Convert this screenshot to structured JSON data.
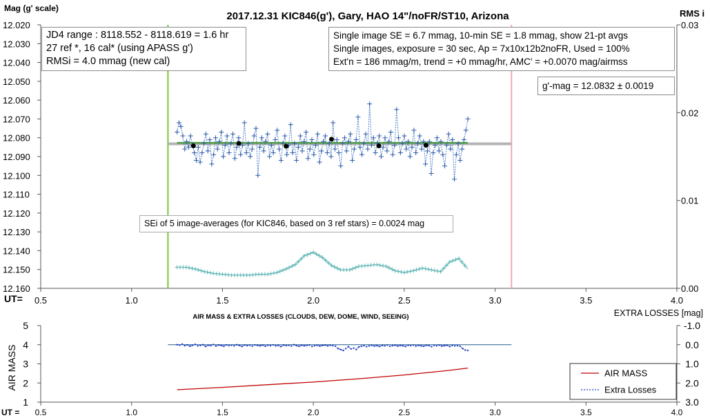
{
  "chart_data": [
    {
      "type": "line",
      "title": "2017.12.31  KIC846(g'),  Gary, HAO  14\"/noFR/ST10,  Arizona",
      "ylabel": "Mag (g' scale)",
      "y2label": "RMS i",
      "xlabel": "UT=",
      "xlim": [
        0.5,
        4.0
      ],
      "ylim": [
        12.02,
        12.16
      ],
      "y_inverted": true,
      "y2lim": [
        0.0,
        0.03
      ],
      "x_ticks": [
        "0.5",
        "1.0",
        "1.5",
        "2.0",
        "2.5",
        "3.0",
        "3.5",
        "4.0"
      ],
      "y_ticks": [
        "12.020",
        "12.030",
        "12.040",
        "12.050",
        "12.060",
        "12.070",
        "12.080",
        "12.090",
        "12.100",
        "12.110",
        "12.120",
        "12.130",
        "12.140",
        "12.150",
        "12.160"
      ],
      "y2_ticks": [
        "0.00",
        "0.01",
        "0.02",
        "0.03"
      ],
      "jd_start_x": 1.2,
      "jd_end_x": 3.09,
      "annotations": {
        "info_left": [
          "JD4 range : 8118.552 - 8118.619 = 1.6  hr",
          "27 ref *, 16 cal* (using APASS g')",
          "RMSi = 4.0 mmag (new cal)"
        ],
        "info_right": [
          "Single image SE = 6.7 mmag, 10-min SE = 1.8 mmag, show  21-pt avgs",
          "Single images, exposure = 30 sec, Ap = 7x10x12b2noFR,  Used = 100%",
          "Ext'n = 186 mmag/m, trend =  +0 mmag/hr, AMC' = +0.0070 mag/airmss"
        ],
        "gmag": "g'-mag = 12.0832 ± 0.0019",
        "sei": "SEi of 5 image-averages (for KIC846, based on 3 ref stars) = 0.0024  mag"
      },
      "series": [
        {
          "kind": "single images",
          "x_start": 1.25,
          "x_end": 2.85,
          "values": [
            12.077,
            12.072,
            12.074,
            12.079,
            12.086,
            12.082,
            12.085,
            12.079,
            12.084,
            12.088,
            12.092,
            12.085,
            12.093,
            12.088,
            12.083,
            12.078,
            12.087,
            12.081,
            12.094,
            12.089,
            12.08,
            12.086,
            12.082,
            12.077,
            12.09,
            12.084,
            12.079,
            12.088,
            12.083,
            12.078,
            12.091,
            12.085,
            12.08,
            12.089,
            12.084,
            12.072,
            12.088,
            12.083,
            12.09,
            12.086,
            12.079,
            12.075,
            12.1,
            12.085,
            12.08,
            12.087,
            12.082,
            12.078,
            12.09,
            12.084,
            12.088,
            12.081,
            12.076,
            12.086,
            12.092,
            12.083,
            12.079,
            12.089,
            12.084,
            12.073,
            12.088,
            12.083,
            12.092,
            12.085,
            12.079,
            12.087,
            12.082,
            12.077,
            12.091,
            12.086,
            12.081,
            12.089,
            12.084,
            12.078,
            12.093,
            12.087,
            12.082,
            12.079,
            12.088,
            12.083,
            12.09,
            12.072,
            12.086,
            12.081,
            12.088,
            12.095,
            12.083,
            12.08,
            12.087,
            12.082,
            12.078,
            12.092,
            12.086,
            12.081,
            12.069,
            12.085,
            12.089,
            12.083,
            12.078,
            12.086,
            12.062,
            12.084,
            12.08,
            12.088,
            12.083,
            12.079,
            12.09,
            12.085,
            12.08,
            12.087,
            12.082,
            12.077,
            12.089,
            12.084,
            12.065,
            12.08,
            12.088,
            12.083,
            12.079,
            12.086,
            12.082,
            12.09,
            12.085,
            12.076,
            12.088,
            12.083,
            12.079,
            12.086,
            12.082,
            12.094,
            12.087,
            12.082,
            12.099,
            12.088,
            12.084,
            12.08,
            12.087,
            12.082,
            12.089,
            12.095,
            12.084,
            12.078,
            12.086,
            12.081,
            12.102,
            12.089,
            12.083,
            12.092,
            12.086,
            12.081,
            12.076,
            12.07
          ]
        },
        {
          "kind": "5-image averages",
          "x": [
            1.34,
            1.59,
            1.85,
            2.1,
            2.36,
            2.62
          ],
          "values": [
            12.0843,
            12.083,
            12.0845,
            12.0808,
            12.0843,
            12.084
          ]
        },
        {
          "kind": "RMS i (right axis)",
          "x": [
            1.25,
            1.3,
            1.35,
            1.4,
            1.45,
            1.5,
            1.55,
            1.6,
            1.65,
            1.7,
            1.75,
            1.8,
            1.85,
            1.9,
            1.95,
            2.0,
            2.05,
            2.1,
            2.15,
            2.2,
            2.25,
            2.3,
            2.35,
            2.4,
            2.45,
            2.5,
            2.55,
            2.6,
            2.65,
            2.7,
            2.75,
            2.8,
            2.85
          ],
          "values": [
            0.0024,
            0.0024,
            0.0022,
            0.0019,
            0.0017,
            0.0016,
            0.0015,
            0.0015,
            0.0015,
            0.0016,
            0.0016,
            0.0018,
            0.0022,
            0.0027,
            0.0037,
            0.0041,
            0.0035,
            0.0026,
            0.0021,
            0.0021,
            0.0025,
            0.0026,
            0.0027,
            0.0025,
            0.002,
            0.0018,
            0.002,
            0.0023,
            0.0021,
            0.0019,
            0.003,
            0.0034,
            0.0022
          ]
        },
        {
          "kind": "mean g'-mag line",
          "x": [
            1.2,
            3.09
          ],
          "values": [
            12.0832,
            12.0832
          ]
        },
        {
          "kind": "fit line",
          "x": [
            1.25,
            2.85
          ],
          "values": [
            12.0827,
            12.0827
          ]
        }
      ]
    },
    {
      "type": "line",
      "title": "AIR MASS & EXTRA LOSSES (CLOUDS, DEW, DOME, WIND, SEEING)",
      "ylabel": "AIR MASS",
      "y2label": "EXTRA LOSSES [mag]",
      "xlabel": "UT =",
      "xlim": [
        0.5,
        4.0
      ],
      "ylim": [
        1,
        5
      ],
      "y2lim": [
        -1.0,
        3.0
      ],
      "y2_inverted": true,
      "x_ticks": [
        "0.5",
        "1.0",
        "1.5",
        "2.0",
        "2.5",
        "3.0",
        "3.5",
        "4.0"
      ],
      "y_ticks": [
        "1",
        "2",
        "3",
        "4",
        "5"
      ],
      "y2_ticks": [
        "-1.0",
        "0.0",
        "1.0",
        "2.0",
        "3.0"
      ],
      "legend": [
        "AIR MASS",
        "Extra Losses"
      ],
      "legend_position": "bottom-right",
      "series": [
        {
          "name": "AIR MASS",
          "x": [
            1.25,
            1.5,
            1.75,
            2.0,
            2.25,
            2.5,
            2.75,
            2.85
          ],
          "values": [
            1.65,
            1.77,
            1.91,
            2.05,
            2.22,
            2.42,
            2.66,
            2.78
          ]
        },
        {
          "name": "Extra Losses",
          "x_start": 1.25,
          "x_end": 2.85,
          "values": [
            0.0,
            0.02,
            -0.03,
            0.05,
            0.01,
            0.08,
            0.03,
            -0.02,
            0.06,
            0.04,
            0.0,
            0.09,
            0.03,
            0.05,
            -0.01,
            0.07,
            0.02,
            0.04,
            0.08,
            0.01,
            0.05,
            0.03,
            0.06,
            0.0,
            0.04,
            0.09,
            0.02,
            0.05,
            0.03,
            0.07,
            0.01,
            0.04,
            0.06,
            0.02,
            0.08,
            0.03,
            0.05,
            0.01,
            0.06,
            0.04,
            0.1,
            0.02,
            0.05,
            0.03,
            0.07,
            0.0,
            0.05,
            0.08,
            0.03,
            0.06,
            0.04,
            0.02,
            0.09,
            0.05,
            0.03,
            0.07,
            0.04,
            0.02,
            0.06,
            0.03,
            0.05,
            0.08,
            0.2,
            0.25,
            0.3,
            0.2,
            0.1,
            0.22,
            0.18,
            0.25,
            0.12,
            0.08,
            0.05,
            0.1,
            0.06,
            0.03,
            0.07,
            0.05,
            0.09,
            0.04,
            0.06,
            0.02,
            0.08,
            0.05,
            0.03,
            0.07,
            0.04,
            0.06,
            0.09,
            0.03,
            0.05,
            0.02,
            0.07,
            0.04,
            0.06,
            0.08,
            0.03,
            0.05,
            0.1,
            0.04,
            0.06,
            0.02,
            0.07,
            0.05,
            0.03,
            0.09,
            0.04,
            0.06,
            0.05,
            0.08,
            0.2,
            0.28,
            0.3
          ]
        },
        {
          "kind": "zero line",
          "x": [
            1.2,
            3.09
          ],
          "values": [
            0.0,
            0.0
          ]
        }
      ]
    }
  ]
}
